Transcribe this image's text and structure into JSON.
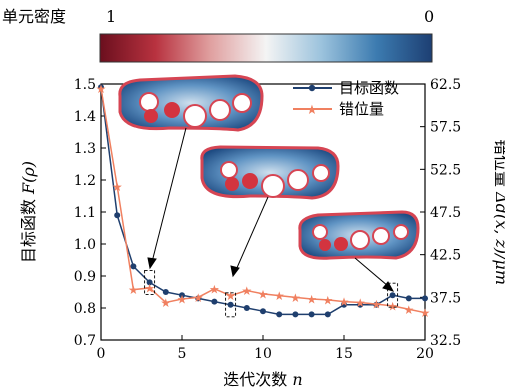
{
  "colorbar": {
    "label": "单元密度",
    "left_value": "1",
    "right_value": "0",
    "colors": [
      "#6b0f1e",
      "#b8323f",
      "#e0a0a0",
      "#f4f4f4",
      "#9cc3dd",
      "#3c7bb0",
      "#1d3f73"
    ]
  },
  "chart_data": {
    "type": "line",
    "xlabel_text": "迭代次数",
    "xlabel_var": "n",
    "ylabel_left_text": "目标函数",
    "ylabel_left_var": "F(ρ)",
    "ylabel_right_text": "错位量",
    "ylabel_right_var": "Δd(x, z)/μm",
    "xlim": [
      0,
      20
    ],
    "ylim_left": [
      0.7,
      1.5
    ],
    "ylim_right": [
      32.5,
      62.5
    ],
    "x_ticks": [
      "0",
      "5",
      "10",
      "15",
      "20"
    ],
    "y_left_ticks": [
      "0.7",
      "0.8",
      "0.9",
      "1.0",
      "1.1",
      "1.2",
      "1.3",
      "1.4",
      "1.5"
    ],
    "y_right_ticks": [
      "32.5",
      "37.5",
      "42.5",
      "47.5",
      "52.5",
      "57.5",
      "62.5"
    ],
    "legend_position": "top-right",
    "series": [
      {
        "name": "目标函数",
        "axis": "left",
        "color": "#1f3f6e",
        "marker": "circle",
        "x": [
          0,
          1,
          2,
          3,
          4,
          5,
          6,
          7,
          8,
          9,
          10,
          11,
          12,
          13,
          14,
          15,
          16,
          17,
          18,
          19,
          20
        ],
        "values": [
          1.49,
          1.09,
          0.93,
          0.88,
          0.85,
          0.84,
          0.83,
          0.82,
          0.81,
          0.8,
          0.79,
          0.78,
          0.78,
          0.78,
          0.78,
          0.81,
          0.81,
          0.81,
          0.84,
          0.83,
          0.83
        ]
      },
      {
        "name": "错位量",
        "axis": "right",
        "color": "#f08060",
        "marker": "star",
        "x": [
          0,
          1,
          2,
          3,
          4,
          5,
          6,
          7,
          8,
          9,
          10,
          11,
          12,
          13,
          14,
          15,
          16,
          17,
          18,
          19,
          20
        ],
        "values": [
          62.0,
          50.5,
          38.4,
          38.6,
          36.9,
          37.3,
          37.5,
          38.5,
          37.7,
          38.3,
          37.9,
          37.7,
          37.5,
          37.3,
          37.2,
          37.0,
          36.9,
          36.7,
          36.5,
          36.1,
          35.7
        ]
      }
    ],
    "highlights": [
      {
        "x": 3,
        "y": 0.88
      },
      {
        "x": 8,
        "y": 0.81
      },
      {
        "x": 18,
        "y": 0.84
      }
    ]
  }
}
